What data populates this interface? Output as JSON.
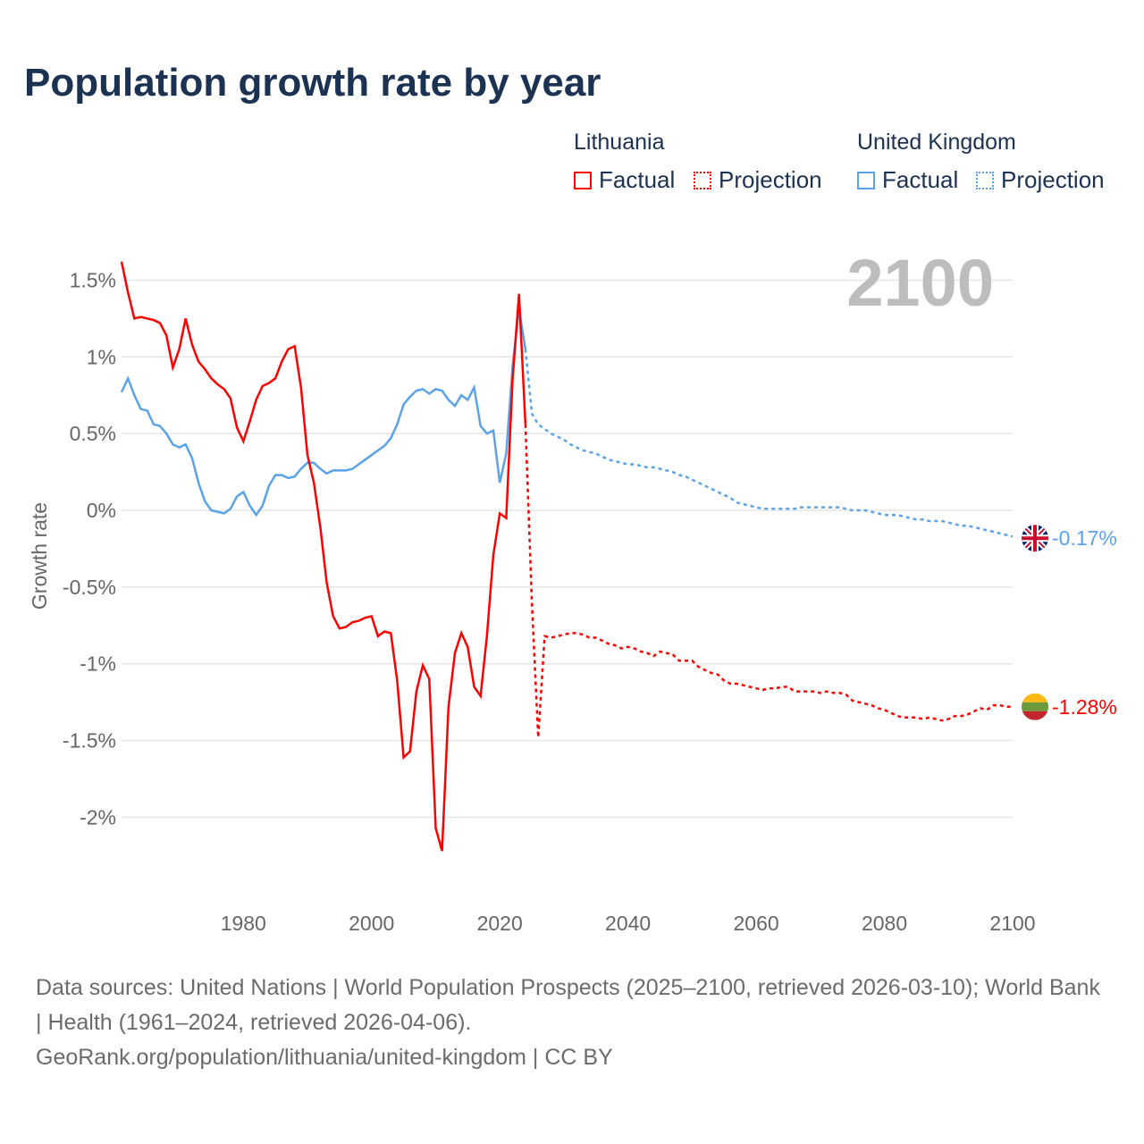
{
  "title": "Population growth rate by year",
  "legend": {
    "groups": [
      {
        "name": "Lithuania",
        "factual": "Factual",
        "projection": "Projection",
        "color": "#ff0000"
      },
      {
        "name": "United Kingdom",
        "factual": "Factual",
        "projection": "Projection",
        "color": "#5ba3e8"
      }
    ]
  },
  "footer": {
    "sources": "Data sources: United Nations | World Population Prospects (2025–2100, retrieved 2026-03-10); World Bank | Health (1961–2024, retrieved 2026-04-06).",
    "link": "GeoRank.org/population/lithuania/united-kingdom | CC BY"
  },
  "chart_data": {
    "type": "line",
    "title": "Population growth rate by year",
    "ylabel": "Growth rate",
    "xlabel": "",
    "year_label": "2100",
    "xlim": [
      1961,
      2100
    ],
    "ylim": [
      -2.5,
      1.7
    ],
    "x_ticks": [
      1980,
      2000,
      2020,
      2040,
      2060,
      2080,
      2100
    ],
    "y_ticks": [
      {
        "v": 1.5,
        "label": "1.5%"
      },
      {
        "v": 1,
        "label": "1%"
      },
      {
        "v": 0.5,
        "label": "0.5%"
      },
      {
        "v": 0,
        "label": "0%"
      },
      {
        "v": -0.5,
        "label": "-0.5%"
      },
      {
        "v": -1,
        "label": "-1%"
      },
      {
        "v": -1.5,
        "label": "-1.5%"
      },
      {
        "v": -2,
        "label": "-2%"
      }
    ],
    "grid": true,
    "series": [
      {
        "name": "Lithuania",
        "color": "#ff0000",
        "end_label": "-1.28%",
        "factual_start": 1961,
        "factual": [
          1.62,
          1.42,
          1.25,
          1.26,
          1.25,
          1.24,
          1.22,
          1.14,
          0.93,
          1.05,
          1.25,
          1.08,
          0.97,
          0.92,
          0.86,
          0.82,
          0.79,
          0.73,
          0.54,
          0.45,
          0.58,
          0.72,
          0.81,
          0.83,
          0.86,
          0.97,
          1.05,
          1.07,
          0.8,
          0.36,
          0.18,
          -0.11,
          -0.47,
          -0.69,
          -0.77,
          -0.76,
          -0.73,
          -0.72,
          -0.7,
          -0.69,
          -0.82,
          -0.79,
          -0.8,
          -1.11,
          -1.61,
          -1.57,
          -1.18,
          -1.01,
          -1.1,
          -2.07,
          -2.22,
          -1.28,
          -0.93,
          -0.8,
          -0.89,
          -1.15,
          -1.21,
          -0.82,
          -0.29,
          -0.02,
          -0.05,
          0.85,
          1.41,
          0.56
        ],
        "projection_start": 2024,
        "projection": [
          0.56,
          -0.6,
          -1.48,
          -0.82,
          -0.83,
          -0.82,
          -0.81,
          -0.8,
          -0.8,
          -0.81,
          -0.83,
          -0.83,
          -0.85,
          -0.87,
          -0.88,
          -0.9,
          -0.89,
          -0.9,
          -0.92,
          -0.93,
          -0.95,
          -0.92,
          -0.93,
          -0.94,
          -0.98,
          -0.98,
          -0.98,
          -1.02,
          -1.04,
          -1.06,
          -1.07,
          -1.11,
          -1.13,
          -1.13,
          -1.14,
          -1.15,
          -1.16,
          -1.17,
          -1.16,
          -1.16,
          -1.15,
          -1.15,
          -1.18,
          -1.18,
          -1.18,
          -1.18,
          -1.19,
          -1.18,
          -1.19,
          -1.19,
          -1.2,
          -1.24,
          -1.25,
          -1.26,
          -1.27,
          -1.29,
          -1.3,
          -1.32,
          -1.34,
          -1.35,
          -1.35,
          -1.35,
          -1.36,
          -1.35,
          -1.36,
          -1.37,
          -1.36,
          -1.34,
          -1.34,
          -1.33,
          -1.31,
          -1.29,
          -1.3,
          -1.27,
          -1.27,
          -1.28,
          -1.28
        ]
      },
      {
        "name": "United Kingdom",
        "color": "#5ba3e8",
        "end_label": "-0.17%",
        "factual_start": 1961,
        "factual": [
          0.77,
          0.86,
          0.75,
          0.66,
          0.65,
          0.56,
          0.55,
          0.5,
          0.43,
          0.41,
          0.43,
          0.34,
          0.18,
          0.06,
          0.0,
          -0.01,
          -0.02,
          0.01,
          0.09,
          0.12,
          0.03,
          -0.03,
          0.03,
          0.16,
          0.23,
          0.23,
          0.21,
          0.22,
          0.27,
          0.31,
          0.31,
          0.27,
          0.24,
          0.26,
          0.26,
          0.26,
          0.27,
          0.3,
          0.33,
          0.36,
          0.39,
          0.42,
          0.47,
          0.56,
          0.69,
          0.74,
          0.78,
          0.79,
          0.76,
          0.79,
          0.78,
          0.72,
          0.68,
          0.75,
          0.72,
          0.8,
          0.55,
          0.5,
          0.52,
          0.18,
          0.37,
          0.94,
          1.31,
          1.05
        ],
        "projection_start": 2024,
        "projection": [
          1.05,
          0.63,
          0.56,
          0.53,
          0.5,
          0.48,
          0.46,
          0.43,
          0.41,
          0.39,
          0.38,
          0.37,
          0.35,
          0.33,
          0.32,
          0.31,
          0.3,
          0.3,
          0.29,
          0.28,
          0.28,
          0.27,
          0.26,
          0.25,
          0.23,
          0.22,
          0.2,
          0.18,
          0.16,
          0.14,
          0.12,
          0.1,
          0.08,
          0.05,
          0.04,
          0.03,
          0.02,
          0.01,
          0.01,
          0.01,
          0.01,
          0.01,
          0.01,
          0.02,
          0.02,
          0.02,
          0.02,
          0.02,
          0.02,
          0.02,
          0.01,
          0.0,
          0.0,
          0.0,
          -0.01,
          -0.02,
          -0.03,
          -0.03,
          -0.03,
          -0.04,
          -0.05,
          -0.06,
          -0.06,
          -0.07,
          -0.07,
          -0.07,
          -0.08,
          -0.09,
          -0.1,
          -0.1,
          -0.11,
          -0.12,
          -0.13,
          -0.14,
          -0.15,
          -0.16,
          -0.17
        ]
      }
    ]
  }
}
